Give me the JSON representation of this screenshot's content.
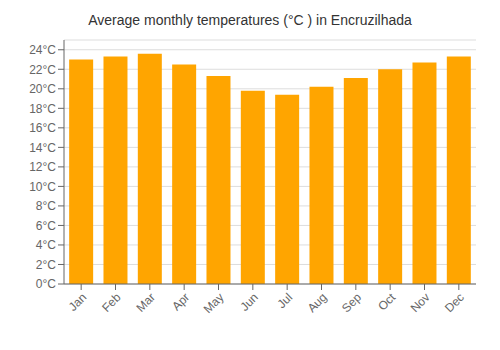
{
  "chart_data": {
    "type": "bar",
    "title": "Average monthly temperatures (°C ) in Encruzilhada",
    "categories": [
      "Jan",
      "Feb",
      "Mar",
      "Apr",
      "May",
      "Jun",
      "Jul",
      "Aug",
      "Sep",
      "Oct",
      "Nov",
      "Dec"
    ],
    "values": [
      23.0,
      23.3,
      23.6,
      22.5,
      21.3,
      19.8,
      19.4,
      20.2,
      21.1,
      22.0,
      22.7,
      23.3
    ],
    "color": "#FFA500",
    "ylim": [
      0,
      25
    ],
    "yticks": [
      {
        "value": 0,
        "label": "0°C"
      },
      {
        "value": 2,
        "label": "2°C"
      },
      {
        "value": 4,
        "label": "4°C"
      },
      {
        "value": 6,
        "label": "6°C"
      },
      {
        "value": 8,
        "label": "8°C"
      },
      {
        "value": 10,
        "label": "10°C"
      },
      {
        "value": 12,
        "label": "12°C"
      },
      {
        "value": 14,
        "label": "14°C"
      },
      {
        "value": 16,
        "label": "16°C"
      },
      {
        "value": 18,
        "label": "18°C"
      },
      {
        "value": 20,
        "label": "20°C"
      },
      {
        "value": 22,
        "label": "22°C"
      },
      {
        "value": 24,
        "label": "24°C"
      }
    ],
    "grid": true
  }
}
